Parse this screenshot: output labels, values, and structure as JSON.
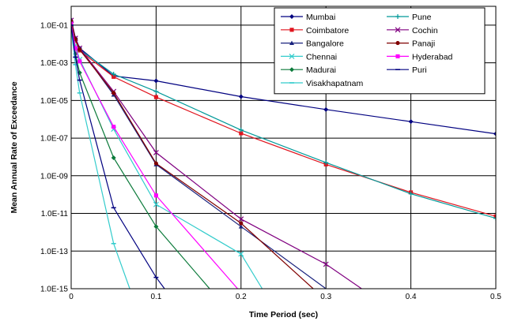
{
  "chart_data": {
    "type": "line",
    "title": "",
    "xlabel": "Time Period (sec)",
    "ylabel": "Mean Annual Rate of Exceedance",
    "xlim": [
      0,
      0.5
    ],
    "ylim": [
      1e-15,
      1
    ],
    "y_scale": "log",
    "x_ticks": [
      0,
      0.1,
      0.2,
      0.3,
      0.4,
      0.5
    ],
    "x_tick_labels": [
      "0",
      "0.1",
      "0.2",
      "0.3",
      "0.4",
      "0.5"
    ],
    "y_ticks": [
      0.1,
      0.001,
      1e-05,
      1e-07,
      1e-09,
      1e-11,
      1e-13,
      1e-15
    ],
    "y_tick_labels": [
      "1.0E-01",
      "1.0E-03",
      "1.0E-05",
      "1.0E-07",
      "1.0E-09",
      "1.0E-11",
      "1.0E-13",
      "1.0E-15"
    ],
    "grid": true,
    "legend_position": "top-right",
    "legend_columns": 2,
    "series": [
      {
        "name": "Mumbai",
        "color": "#000080",
        "marker": "diamond",
        "x": [
          0,
          0.005,
          0.01,
          0.05,
          0.1,
          0.2,
          0.3,
          0.4,
          0.5
        ],
        "y": [
          0.15,
          0.02,
          0.006,
          0.0002,
          0.00011,
          1.6e-05,
          3.3e-06,
          7.5e-07,
          1.7e-07
        ]
      },
      {
        "name": "Coimbatore",
        "color": "#e0141e",
        "marker": "square",
        "x": [
          0,
          0.005,
          0.01,
          0.05,
          0.1,
          0.2,
          0.3,
          0.4,
          0.5
        ],
        "y": [
          0.13,
          0.015,
          0.0045,
          0.00018,
          1.5e-05,
          1.8e-07,
          4e-09,
          1.3e-10,
          7e-12
        ]
      },
      {
        "name": "Bangalore",
        "color": "#1a237e",
        "marker": "triangle",
        "x": [
          0,
          0.005,
          0.01,
          0.05,
          0.1,
          0.2,
          0.3
        ],
        "y": [
          0.2,
          0.02,
          0.006,
          2e-05,
          4e-09,
          2e-12,
          1e-15
        ]
      },
      {
        "name": "Chennai",
        "color": "#33cccc",
        "marker": "x",
        "x": [
          0,
          0.005,
          0.01,
          0.05,
          0.1,
          0.2,
          0.225
        ],
        "y": [
          0.11,
          0.008,
          0.0015,
          3e-07,
          3e-11,
          7e-14,
          1e-15
        ]
      },
      {
        "name": "Madurai",
        "color": "#0b7a3a",
        "marker": "diamond",
        "x": [
          0,
          0.005,
          0.01,
          0.05,
          0.1,
          0.163
        ],
        "y": [
          0.09,
          0.003,
          0.0003,
          9e-09,
          2e-12,
          1e-15
        ]
      },
      {
        "name": "Visakhapatnam",
        "color": "#33cccc",
        "marker": "dash",
        "x": [
          0,
          0.005,
          0.01,
          0.05,
          0.069
        ],
        "y": [
          0.06,
          0.0008,
          2.5e-05,
          2.5e-13,
          1e-15
        ]
      },
      {
        "name": "Pune",
        "color": "#009999",
        "marker": "plus",
        "x": [
          0,
          0.005,
          0.01,
          0.05,
          0.1,
          0.2,
          0.3,
          0.4,
          0.5
        ],
        "y": [
          0.14,
          0.018,
          0.005,
          0.00025,
          3e-05,
          2.7e-07,
          5e-09,
          1.1e-10,
          5.5e-12
        ]
      },
      {
        "name": "Cochin",
        "color": "#800080",
        "marker": "x",
        "x": [
          0,
          0.005,
          0.01,
          0.05,
          0.1,
          0.2,
          0.3,
          0.342
        ],
        "y": [
          0.18,
          0.02,
          0.006,
          3e-05,
          1.7e-08,
          5e-12,
          2e-14,
          1e-15
        ]
      },
      {
        "name": "Panaji",
        "color": "#800000",
        "marker": "circle",
        "x": [
          0,
          0.005,
          0.01,
          0.05,
          0.1,
          0.2,
          0.285
        ],
        "y": [
          0.16,
          0.018,
          0.005,
          2.5e-05,
          4.5e-09,
          3e-12,
          1e-15
        ]
      },
      {
        "name": "Hyderabad",
        "color": "#ff00ff",
        "marker": "square",
        "x": [
          0,
          0.005,
          0.01,
          0.05,
          0.1,
          0.196
        ],
        "y": [
          0.12,
          0.006,
          0.0012,
          4e-07,
          9e-11,
          1e-15
        ]
      },
      {
        "name": "Puri",
        "color": "#000080",
        "marker": "dash",
        "x": [
          0,
          0.005,
          0.01,
          0.05,
          0.1,
          0.11
        ],
        "y": [
          0.1,
          0.002,
          0.00012,
          2e-11,
          4e-15,
          1e-15
        ]
      }
    ]
  }
}
